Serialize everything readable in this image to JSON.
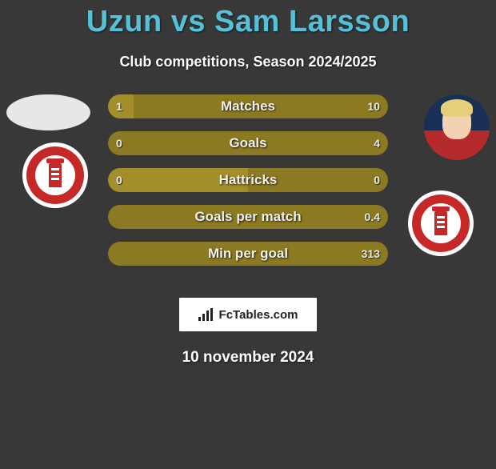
{
  "colors": {
    "background": "#383838",
    "title": "#55c1d9",
    "text": "#ffffff",
    "bar_left": "#a38e2a",
    "bar_right": "#8c7a23",
    "bar_neutral": "#8c7a23",
    "brand_bg": "#ffffff",
    "brand_text": "#222222"
  },
  "typography": {
    "title_fontsize": 38,
    "subtitle_fontsize": 18,
    "bar_label_fontsize": 17,
    "bar_value_fontsize": 14,
    "date_fontsize": 19
  },
  "title": "Uzun vs Sam Larsson",
  "subtitle": "Club competitions, Season 2024/2025",
  "date": "10 november 2024",
  "brand": "FcTables.com",
  "players": {
    "left": {
      "name": "Uzun"
    },
    "right": {
      "name": "Sam Larsson"
    }
  },
  "bars": [
    {
      "label": "Matches",
      "left": "1",
      "right": "10",
      "left_pct": 9,
      "right_pct": 91
    },
    {
      "label": "Goals",
      "left": "0",
      "right": "4",
      "left_pct": 0,
      "right_pct": 100
    },
    {
      "label": "Hattricks",
      "left": "0",
      "right": "0",
      "left_pct": 50,
      "right_pct": 50
    },
    {
      "label": "Goals per match",
      "left": "",
      "right": "0.4",
      "left_pct": 0,
      "right_pct": 100
    },
    {
      "label": "Min per goal",
      "left": "",
      "right": "313",
      "left_pct": 0,
      "right_pct": 100
    }
  ]
}
